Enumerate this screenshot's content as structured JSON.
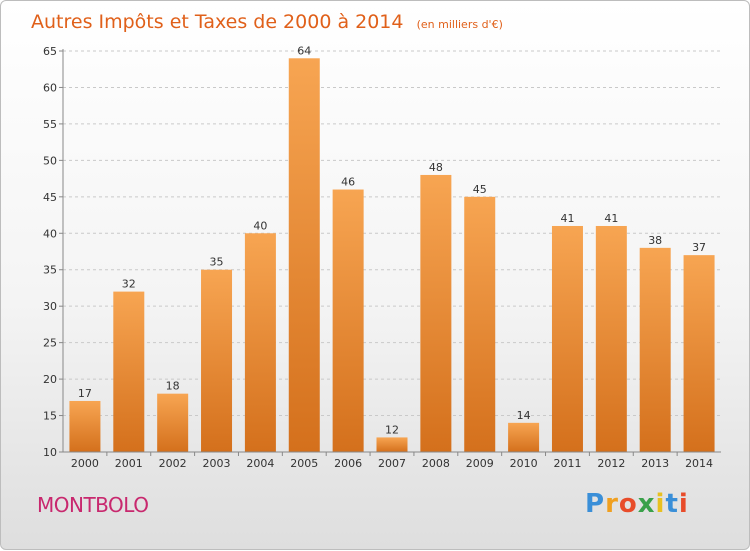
{
  "chart_data": {
    "type": "bar",
    "title": "Autres Impôts et Taxes de 2000 à 2014",
    "unit_note": "(en milliers d'€)",
    "categories": [
      "2000",
      "2001",
      "2002",
      "2003",
      "2004",
      "2005",
      "2006",
      "2007",
      "2008",
      "2009",
      "2010",
      "2011",
      "2012",
      "2013",
      "2014"
    ],
    "values": [
      17,
      32,
      18,
      35,
      40,
      64,
      46,
      12,
      48,
      45,
      14,
      41,
      41,
      38,
      37
    ],
    "ylim": [
      10,
      65
    ],
    "yticks": [
      10,
      15,
      20,
      25,
      30,
      35,
      40,
      45,
      50,
      55,
      60,
      65
    ],
    "grid": true,
    "bar_color": "#f09a45"
  },
  "footer": {
    "commune": "MONTBOLO",
    "brand_letters": [
      "P",
      "r",
      "o",
      "x",
      "i",
      "t",
      "i"
    ],
    "brand_colors": [
      "#3a8fd8",
      "#f0a020",
      "#e84c2a",
      "#3aa14a",
      "#e8c020",
      "#3a8fd8",
      "#e84c2a"
    ]
  }
}
